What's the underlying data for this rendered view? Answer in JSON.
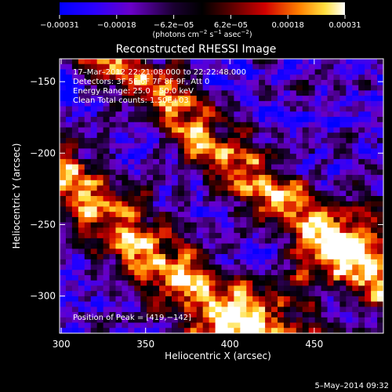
{
  "chart_data": {
    "type": "heatmap",
    "title": "Reconstructed RHESSI Image",
    "xlabel": "Heliocentric X (arcsec)",
    "ylabel": "Heliocentric Y (arcsec)",
    "xlim": [
      299,
      491
    ],
    "ylim": [
      -326,
      -134
    ],
    "x_ticks": [
      300,
      350,
      400,
      450
    ],
    "x_tick_labels": [
      "300",
      "350",
      "400",
      "450"
    ],
    "y_ticks": [
      -300,
      -250,
      -200,
      -150
    ],
    "y_tick_labels": [
      "−300",
      "−250",
      "−200",
      "−150"
    ],
    "colorbar": {
      "colormap": "hot-blue diverging",
      "colors": [
        "#0000ff",
        "#5a00c8",
        "#120022",
        "#5a0000",
        "#c80000",
        "#ff7800",
        "#ffff64",
        "#ffffff"
      ],
      "range": [
        -0.00031,
        0.00031
      ],
      "tick_labels": [
        "−0.00031",
        "−0.00018",
        "−6.2e−05",
        "6.2e−05",
        "0.00018",
        "0.00031"
      ],
      "unit_label": "(photons cm",
      "unit_sup1": "−2",
      "unit_mid": " s",
      "unit_sup2": "−1",
      "unit_mid2": " asec",
      "unit_sup3": "−2",
      "unit_end": ")"
    },
    "annotations": {
      "time_range": "17–Mar–2012 22:21:08.000 to 22:22:48.000",
      "detectors": "Detectors: 3F 5F 6F 7F 8F 9F, Att 0",
      "energy_range": "Energy Range: 25.0 – 50.0 keV",
      "algorithm": "Clean    Total counts: 1.50E+03",
      "peak": "Position of Peak = [419,−142]"
    },
    "image_grid": {
      "columns": 52,
      "rows": 52,
      "peak": [
        419,
        -142
      ]
    }
  },
  "footer": {
    "timestamp": "5–May–2014 09:32"
  }
}
